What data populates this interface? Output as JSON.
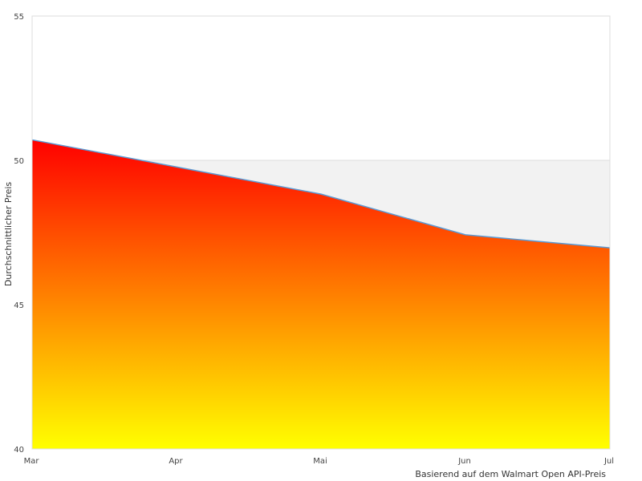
{
  "chart_data": {
    "type": "area",
    "categories": [
      "Mar",
      "Apr",
      "Mai",
      "Jun",
      "Jul"
    ],
    "values": [
      50.71,
      49.77,
      48.83,
      47.42,
      46.97
    ],
    "xlabel": "Basierend auf dem Walmart Open API-Preis",
    "ylabel": "Durchschnittlicher Preis",
    "ylim": [
      40,
      55
    ],
    "yticks": [
      40,
      45,
      50,
      55
    ],
    "grid": true,
    "legend": "none",
    "colors": {
      "fill_top": "#ff0000",
      "fill_bottom": "#ffff00",
      "line": "#5b9bd5",
      "band": "#f2f2f2",
      "grid": "#dddddd"
    }
  }
}
